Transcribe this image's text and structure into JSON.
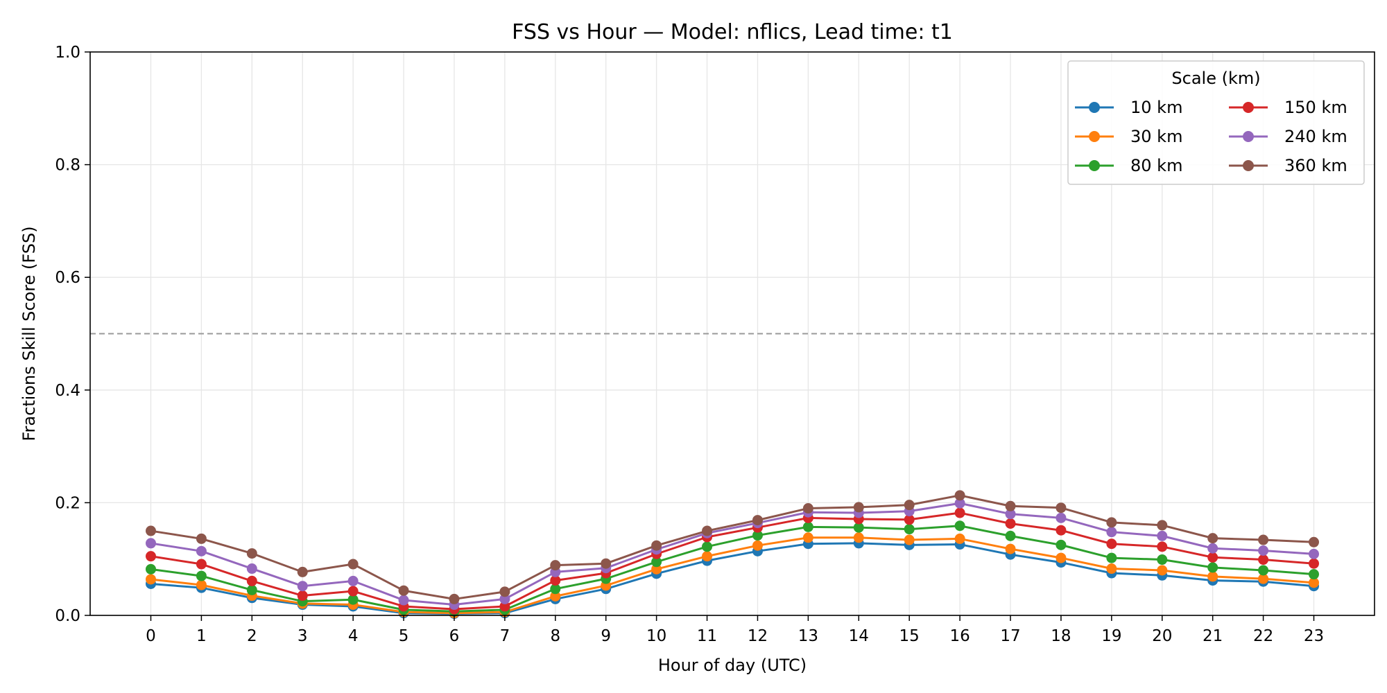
{
  "chart_data": {
    "type": "line",
    "title": "FSS vs Hour — Model: nflics, Lead time: t1",
    "xlabel": "Hour of day (UTC)",
    "ylabel": "Fractions Skill Score (FSS)",
    "xlim": [
      -1.2,
      24.2
    ],
    "ylim": [
      0,
      1.0
    ],
    "x": [
      0,
      1,
      2,
      3,
      4,
      5,
      6,
      7,
      8,
      9,
      10,
      11,
      12,
      13,
      14,
      15,
      16,
      17,
      18,
      19,
      20,
      21,
      22,
      23
    ],
    "x_tick_labels": [
      "0",
      "1",
      "2",
      "3",
      "4",
      "5",
      "6",
      "7",
      "8",
      "9",
      "10",
      "11",
      "12",
      "13",
      "14",
      "15",
      "16",
      "17",
      "18",
      "19",
      "20",
      "21",
      "22",
      "23"
    ],
    "y_ticks": [
      0.0,
      0.2,
      0.4,
      0.6,
      0.8,
      1.0
    ],
    "y_tick_labels": [
      "0.0",
      "0.2",
      "0.4",
      "0.6",
      "0.8",
      "1.0"
    ],
    "grid": true,
    "reference_line": {
      "y": 0.5,
      "style": "dashed",
      "color": "#999999"
    },
    "legend": {
      "title": "Scale (km)",
      "placement": "top-right",
      "columns": 2
    },
    "series": [
      {
        "name": "10 km",
        "color": "#1f77b4",
        "values": [
          0.056,
          0.049,
          0.031,
          0.019,
          0.016,
          0.004,
          0.003,
          0.004,
          0.029,
          0.047,
          0.074,
          0.097,
          0.114,
          0.127,
          0.128,
          0.125,
          0.126,
          0.108,
          0.094,
          0.075,
          0.071,
          0.062,
          0.06,
          0.052
        ]
      },
      {
        "name": "30 km",
        "color": "#ff7f0e",
        "values": [
          0.064,
          0.054,
          0.035,
          0.021,
          0.019,
          0.006,
          0.004,
          0.006,
          0.034,
          0.053,
          0.082,
          0.105,
          0.124,
          0.138,
          0.138,
          0.134,
          0.136,
          0.118,
          0.102,
          0.083,
          0.08,
          0.069,
          0.065,
          0.058
        ]
      },
      {
        "name": "80 km",
        "color": "#2ca02c",
        "values": [
          0.082,
          0.07,
          0.045,
          0.025,
          0.028,
          0.01,
          0.007,
          0.01,
          0.047,
          0.065,
          0.095,
          0.122,
          0.142,
          0.157,
          0.156,
          0.153,
          0.159,
          0.141,
          0.125,
          0.102,
          0.099,
          0.085,
          0.08,
          0.073
        ]
      },
      {
        "name": "150 km",
        "color": "#d62728",
        "values": [
          0.105,
          0.091,
          0.061,
          0.035,
          0.043,
          0.016,
          0.011,
          0.016,
          0.062,
          0.075,
          0.109,
          0.139,
          0.156,
          0.173,
          0.171,
          0.17,
          0.182,
          0.163,
          0.151,
          0.127,
          0.122,
          0.103,
          0.099,
          0.092
        ]
      },
      {
        "name": "240 km",
        "color": "#9467bd",
        "values": [
          0.128,
          0.114,
          0.083,
          0.052,
          0.061,
          0.027,
          0.019,
          0.029,
          0.077,
          0.084,
          0.117,
          0.146,
          0.164,
          0.183,
          0.182,
          0.185,
          0.199,
          0.18,
          0.173,
          0.148,
          0.141,
          0.119,
          0.115,
          0.109
        ]
      },
      {
        "name": "360 km",
        "color": "#8c564b",
        "values": [
          0.15,
          0.136,
          0.11,
          0.077,
          0.091,
          0.044,
          0.029,
          0.042,
          0.089,
          0.092,
          0.124,
          0.15,
          0.169,
          0.19,
          0.192,
          0.196,
          0.213,
          0.194,
          0.191,
          0.165,
          0.16,
          0.137,
          0.134,
          0.13
        ]
      }
    ]
  }
}
